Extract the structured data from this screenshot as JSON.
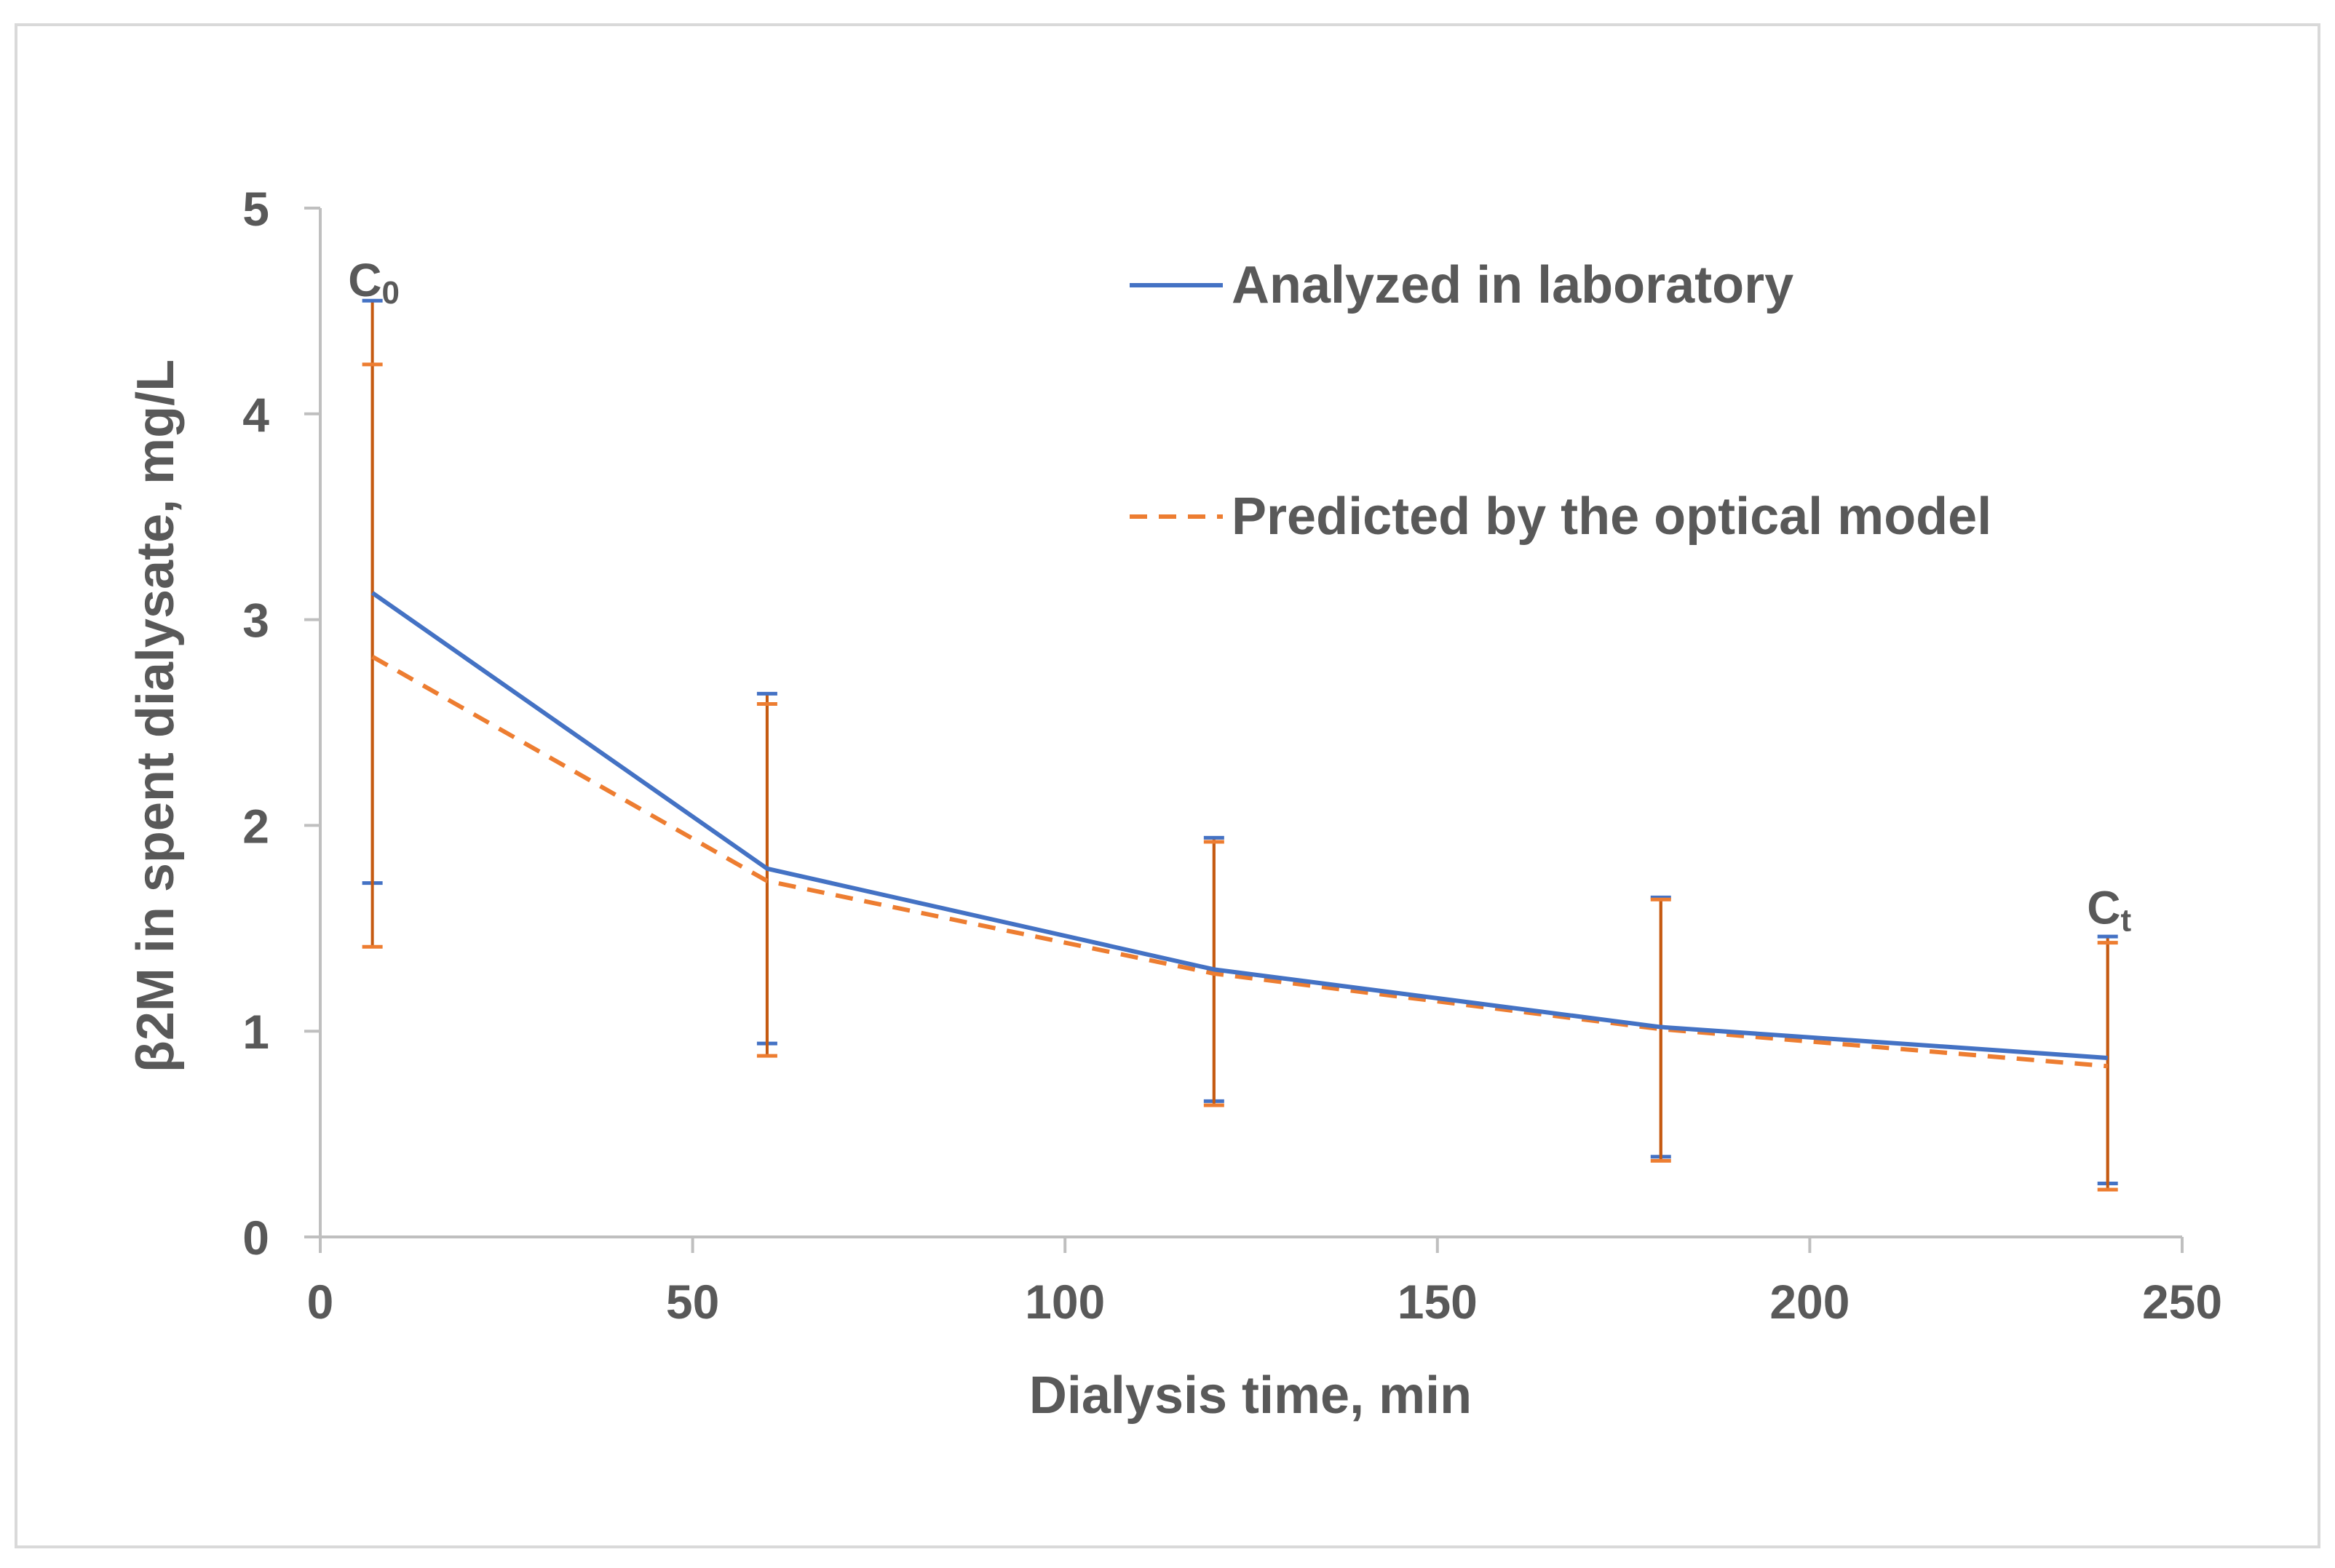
{
  "chart_data": {
    "type": "line",
    "title": "",
    "xlabel": "Dialysis time, min",
    "ylabel": "β2M in spent dialysate, mg/L",
    "xlim": [
      0,
      250
    ],
    "ylim": [
      0,
      5
    ],
    "xticks": [
      0,
      50,
      100,
      150,
      200,
      250
    ],
    "yticks": [
      0,
      1,
      2,
      3,
      4,
      5
    ],
    "grid": false,
    "legend_position": "top-right",
    "series": [
      {
        "name": "Analyzed in laboratory",
        "color": "#4472C4",
        "style": "solid",
        "x": [
          7,
          60,
          120,
          180,
          240
        ],
        "y": [
          3.13,
          1.79,
          1.3,
          1.02,
          0.87
        ],
        "err_low": [
          1.72,
          0.94,
          0.66,
          0.39,
          0.26
        ],
        "err_high": [
          4.55,
          2.64,
          1.94,
          1.65,
          1.46
        ]
      },
      {
        "name": "Predicted by the optical model",
        "color": "#ED7D31",
        "style": "dashed",
        "x": [
          7,
          60,
          120,
          180,
          240
        ],
        "y": [
          2.82,
          1.73,
          1.28,
          1.01,
          0.83
        ],
        "err_low": [
          1.41,
          0.88,
          0.64,
          0.37,
          0.23
        ],
        "err_high": [
          4.24,
          2.59,
          1.92,
          1.64,
          1.43
        ]
      }
    ],
    "annotations": [
      {
        "id": "c0",
        "text": "C",
        "sub": "0",
        "x": 7,
        "y": 4.65
      },
      {
        "id": "ct",
        "text": "C",
        "sub": "t",
        "x": 240,
        "y": 1.6
      }
    ],
    "errorbar_color": "#C55A11"
  }
}
